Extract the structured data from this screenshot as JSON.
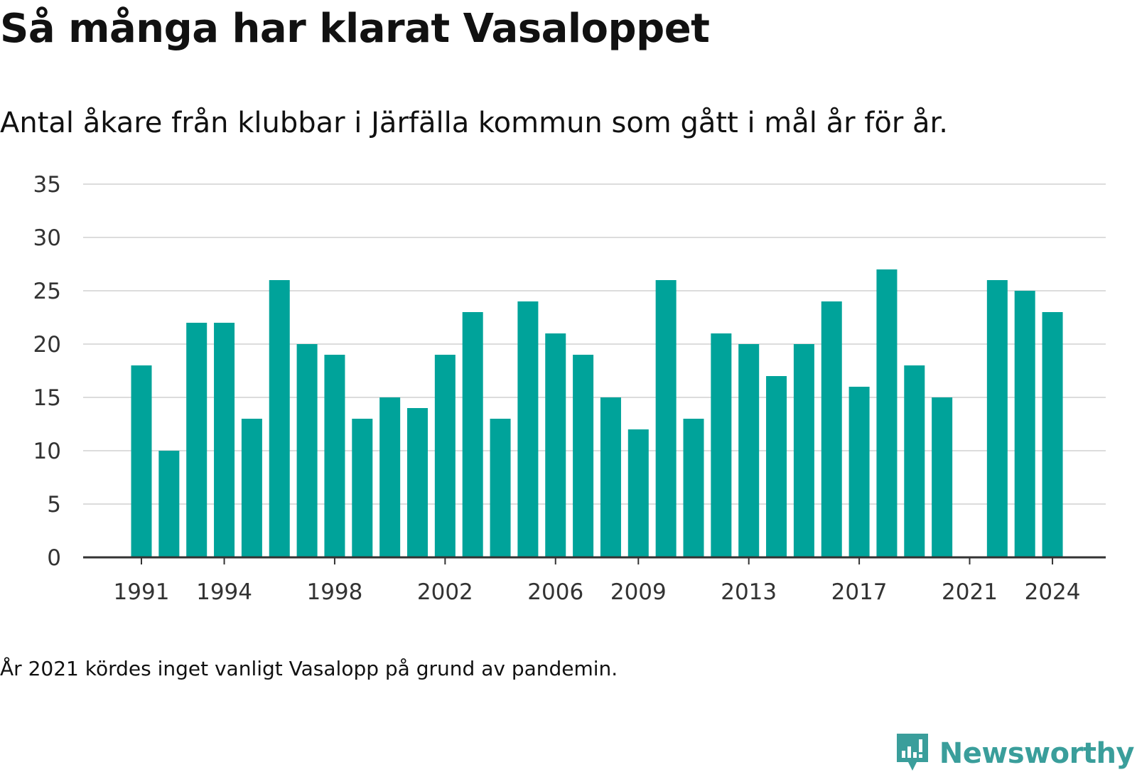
{
  "title": "Så många har klarat Vasaloppet",
  "subtitle": "Antal åkare från klubbar i Järfälla kommun som gått i mål år för år.",
  "note": "År 2021 kördes inget vanligt Vasalopp på grund av pandemin.",
  "brand": {
    "name": "Newsworthy",
    "icon": "newsworthy-logo-icon"
  },
  "colors": {
    "bar": "#00a39a",
    "grid": "#dcdcdc",
    "axis": "#333333",
    "brand": "#3a9e9b"
  },
  "chart_data": {
    "type": "bar",
    "title": "Så många har klarat Vasaloppet",
    "subtitle": "Antal åkare från klubbar i Järfälla kommun som gått i mål år för år.",
    "xlabel": "",
    "ylabel": "",
    "categories": [
      1991,
      1992,
      1993,
      1994,
      1995,
      1996,
      1997,
      1998,
      1999,
      2000,
      2001,
      2002,
      2003,
      2004,
      2005,
      2006,
      2007,
      2008,
      2009,
      2010,
      2011,
      2012,
      2013,
      2014,
      2015,
      2016,
      2017,
      2018,
      2019,
      2020,
      2021,
      2022,
      2023,
      2024
    ],
    "values": [
      18,
      10,
      22,
      22,
      13,
      26,
      20,
      19,
      13,
      15,
      14,
      19,
      23,
      13,
      24,
      21,
      19,
      15,
      12,
      26,
      13,
      21,
      20,
      17,
      20,
      24,
      16,
      27,
      18,
      15,
      null,
      26,
      25,
      23
    ],
    "x_tick_labels": [
      "1991",
      "1994",
      "1998",
      "2002",
      "2006",
      "2009",
      "2013",
      "2017",
      "2021",
      "2024"
    ],
    "y_ticks": [
      0,
      5,
      10,
      15,
      20,
      25,
      30,
      35
    ],
    "ylim": [
      0,
      35
    ],
    "grid": true,
    "legend": "none"
  }
}
